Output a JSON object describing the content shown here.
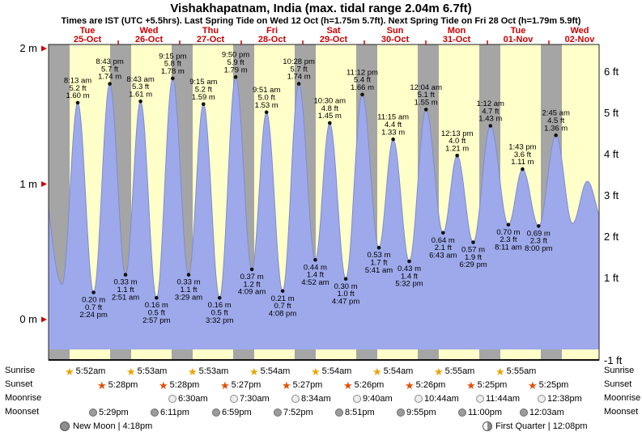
{
  "title": "Vishakhapatnam, India (max. tidal range 2.04m 6.7ft)",
  "subtitle": "Times are IST (UTC +5.5hrs). Last Spring Tide on Wed 12 Oct (h=1.75m 5.7ft). Next Spring Tide on Fri 28 Oct (h=1.79m 5.9ft)",
  "colors": {
    "day_band": "#ffffc9",
    "night_band": "#a5a5a5",
    "tide_fill": "#9da9ea",
    "tide_stroke": "#7e8cd0",
    "day_label": "#cc0000",
    "axis_tick": "#cc0000",
    "sunrise_star": "#e8a400",
    "sunset_star": "#e24e00"
  },
  "chart_data": {
    "type": "area",
    "title": "Tide height curve with high/low annotations, day (yellow) and night (grey) bands",
    "x_axis": {
      "unit": "hours from Tue 25-Oct 00:00 IST",
      "days": [
        {
          "dow": "Tue",
          "date": "25-Oct"
        },
        {
          "dow": "Wed",
          "date": "26-Oct"
        },
        {
          "dow": "Thu",
          "date": "27-Oct"
        },
        {
          "dow": "Fri",
          "date": "28-Oct"
        },
        {
          "dow": "Sat",
          "date": "29-Oct"
        },
        {
          "dow": "Sun",
          "date": "30-Oct"
        },
        {
          "dow": "Mon",
          "date": "31-Oct"
        },
        {
          "dow": "Tue",
          "date": "01-Nov"
        },
        {
          "dow": "Wed",
          "date": "02-Nov"
        }
      ]
    },
    "y_axis": {
      "left_ticks": [
        "2 m",
        "1 m",
        "0 m"
      ],
      "left_values_m": [
        2,
        1,
        0
      ],
      "right_ticks": [
        "6 ft",
        "5 ft",
        "4 ft",
        "3 ft",
        "2 ft",
        "1 ft",
        "-1 ft"
      ],
      "right_values_ft": [
        6,
        5,
        4,
        3,
        2,
        1,
        -1
      ],
      "range_m": [
        -0.3,
        2.03
      ]
    },
    "extremes": [
      {
        "type": "high",
        "t": 8.2167,
        "time": "8:13 am",
        "ft": "5.2 ft",
        "m": "1.60 m"
      },
      {
        "type": "low",
        "t": 14.4,
        "time": "2:24 pm",
        "ft": "0.7 ft",
        "m": "0.20 m"
      },
      {
        "type": "high",
        "t": 20.7167,
        "time": "8:43 pm",
        "ft": "5.7 ft",
        "m": "1.74 m"
      },
      {
        "type": "low",
        "t": 26.85,
        "time": "2:51 am",
        "ft": "1.1 ft",
        "m": "0.33 m"
      },
      {
        "type": "high",
        "t": 32.7167,
        "time": "8:43 am",
        "ft": "5.3 ft",
        "m": "1.61 m"
      },
      {
        "type": "low",
        "t": 38.95,
        "time": "2:57 pm",
        "ft": "0.5 ft",
        "m": "0.16 m"
      },
      {
        "type": "high",
        "t": 45.25,
        "time": "9:15 pm",
        "ft": "5.8 ft",
        "m": "1.78 m"
      },
      {
        "type": "low",
        "t": 51.4833,
        "time": "3:29 am",
        "ft": "1.1 ft",
        "m": "0.33 m"
      },
      {
        "type": "high",
        "t": 57.25,
        "time": "9:15 am",
        "ft": "5.2 ft",
        "m": "1.59 m"
      },
      {
        "type": "low",
        "t": 63.5333,
        "time": "3:32 pm",
        "ft": "0.5 ft",
        "m": "0.16 m"
      },
      {
        "type": "high",
        "t": 69.8333,
        "time": "9:50 pm",
        "ft": "5.9 ft",
        "m": "1.79 m"
      },
      {
        "type": "low",
        "t": 76.15,
        "time": "4:09 am",
        "ft": "1.2 ft",
        "m": "0.37 m"
      },
      {
        "type": "high",
        "t": 81.85,
        "time": "9:51 am",
        "ft": "5.0 ft",
        "m": "1.53 m"
      },
      {
        "type": "low",
        "t": 88.1333,
        "time": "4:08 pm",
        "ft": "0.7 ft",
        "m": "0.21 m"
      },
      {
        "type": "high",
        "t": 94.4667,
        "time": "10:28 pm",
        "ft": "5.7 ft",
        "m": "1.74 m"
      },
      {
        "type": "low",
        "t": 100.8667,
        "time": "4:52 am",
        "ft": "1.4 ft",
        "m": "0.44 m"
      },
      {
        "type": "high",
        "t": 106.5,
        "time": "10:30 am",
        "ft": "4.8 ft",
        "m": "1.45 m"
      },
      {
        "type": "low",
        "t": 112.7833,
        "time": "4:47 pm",
        "ft": "1.0 ft",
        "m": "0.30 m"
      },
      {
        "type": "high",
        "t": 119.2,
        "time": "11:12 pm",
        "ft": "5.4 ft",
        "m": "1.66 m"
      },
      {
        "type": "low",
        "t": 125.6833,
        "time": "5:41 am",
        "ft": "1.7 ft",
        "m": "0.53 m"
      },
      {
        "type": "high",
        "t": 131.25,
        "time": "11:15 am",
        "ft": "4.4 ft",
        "m": "1.33 m"
      },
      {
        "type": "low",
        "t": 137.5333,
        "time": "5:32 pm",
        "ft": "1.4 ft",
        "m": "0.43 m"
      },
      {
        "type": "high",
        "t": 144.0667,
        "time": "12:04 am",
        "ft": "5.1 ft",
        "m": "1.55 m"
      },
      {
        "type": "low",
        "t": 150.7167,
        "time": "6:43 am",
        "ft": "2.1 ft",
        "m": "0.64 m"
      },
      {
        "type": "high",
        "t": 156.2167,
        "time": "12:13 pm",
        "ft": "4.0 ft",
        "m": "1.21 m"
      },
      {
        "type": "low",
        "t": 162.4833,
        "time": "6:29 pm",
        "ft": "1.9 ft",
        "m": "0.57 m"
      },
      {
        "type": "high",
        "t": 169.2,
        "time": "1:12 am",
        "ft": "4.7 ft",
        "m": "1.43 m"
      },
      {
        "type": "low",
        "t": 176.1833,
        "time": "8:11 am",
        "ft": "2.3 ft",
        "m": "0.70 m"
      },
      {
        "type": "high",
        "t": 181.7167,
        "time": "1:43 pm",
        "ft": "3.6 ft",
        "m": "1.11 m"
      },
      {
        "type": "low",
        "t": 188,
        "time": "8:00 pm",
        "ft": "2.3 ft",
        "m": "0.69 m"
      },
      {
        "type": "high",
        "t": 194.75,
        "time": "2:45 am",
        "ft": "4.5 ft",
        "m": "1.36 m"
      }
    ],
    "edge_anchors": [
      {
        "t": -9.0,
        "m": 1.5
      },
      {
        "t": 2.1,
        "m": 0.26
      },
      {
        "t": 201.2,
        "m": 0.71
      },
      {
        "t": 207.0,
        "m": 1.02
      },
      {
        "t": 213.5,
        "m": 0.7
      }
    ]
  },
  "astro": {
    "rows": [
      {
        "label": "Sunrise",
        "icon": "sunrise-star",
        "times": [
          "5:52am",
          "5:53am",
          "5:53am",
          "5:54am",
          "5:54am",
          "5:54am",
          "5:55am",
          "5:55am"
        ]
      },
      {
        "label": "Sunset",
        "icon": "sunset-star",
        "times": [
          "5:28pm",
          "5:28pm",
          "5:27pm",
          "5:27pm",
          "5:26pm",
          "5:26pm",
          "5:25pm",
          "5:25pm"
        ]
      },
      {
        "label": "Moonrise",
        "icon": "moonrise-circle",
        "times": [
          "6:30am",
          "7:30am",
          "8:34am",
          "9:40am",
          "10:44am",
          "11:44am",
          "12:38pm"
        ]
      },
      {
        "label": "Moonset",
        "icon": "moonset-circle",
        "times": [
          "5:29pm",
          "6:11pm",
          "6:59pm",
          "7:52pm",
          "8:51pm",
          "9:55pm",
          "11:00pm",
          "12:03am"
        ]
      }
    ],
    "phases": [
      {
        "name": "New Moon",
        "icon": "new-moon-icon",
        "label": "New Moon | 4:18pm"
      },
      {
        "name": "First Quarter",
        "icon": "first-quarter-icon",
        "label": "First Quarter | 12:08pm"
      }
    ]
  }
}
